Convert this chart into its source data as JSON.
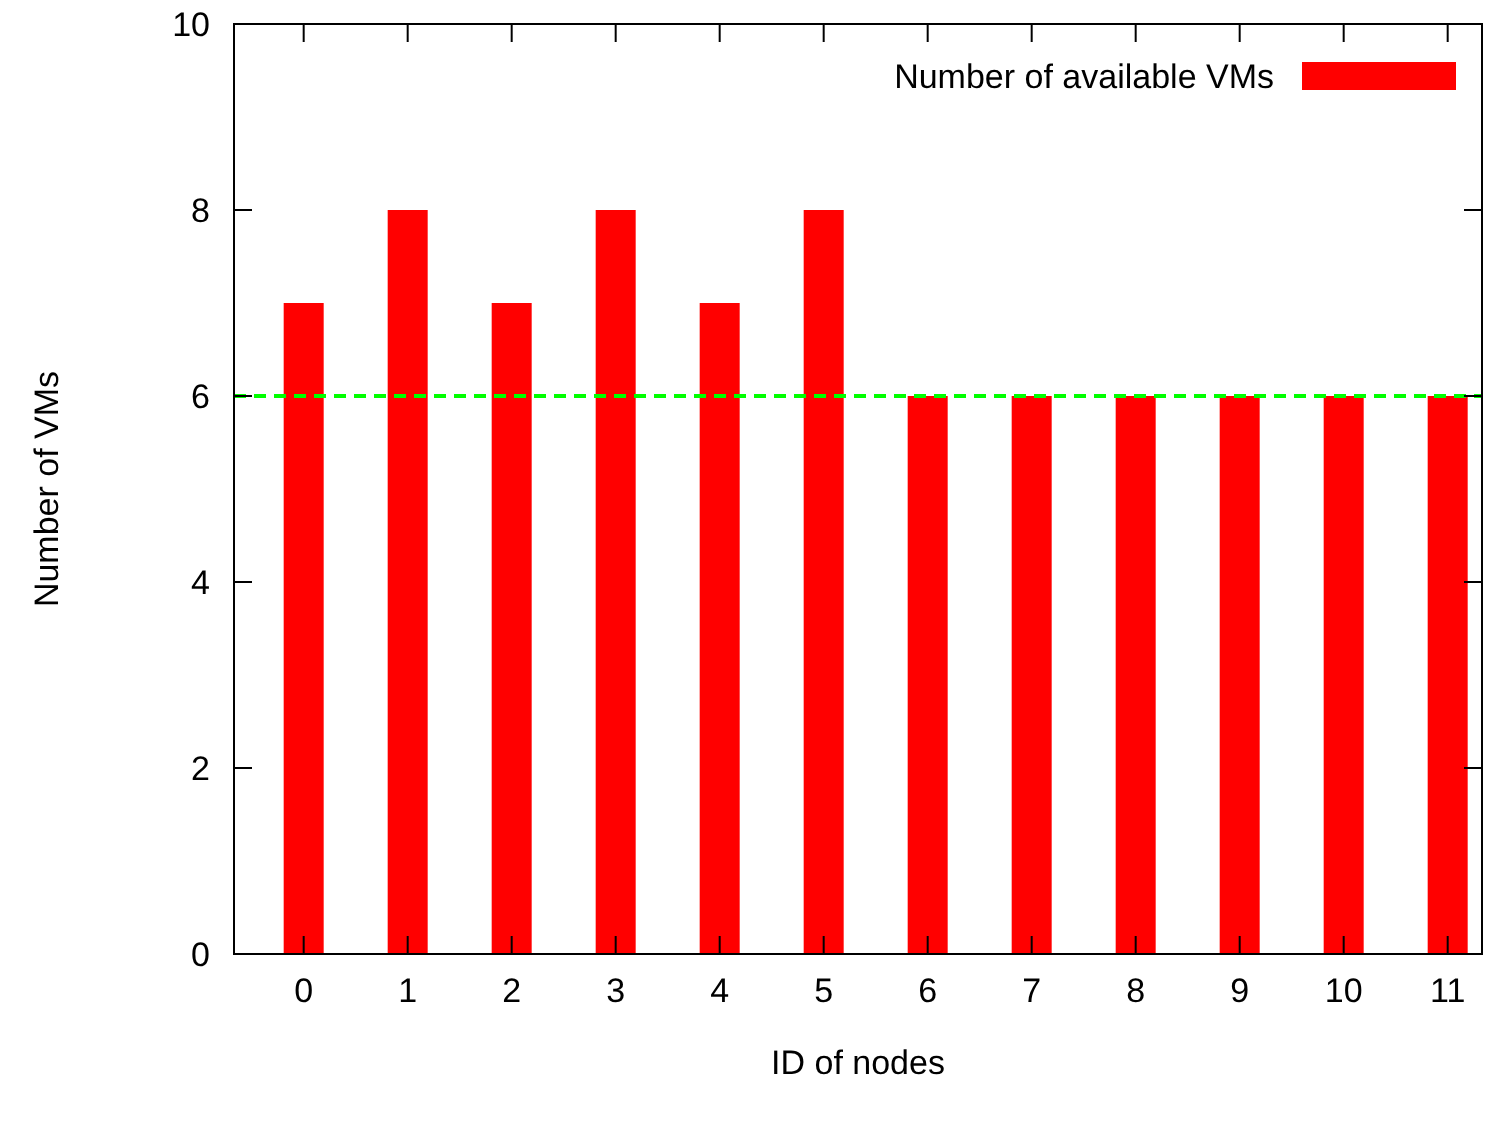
{
  "chart_data": {
    "type": "bar",
    "xlabel": "ID of nodes",
    "ylabel": "Number of VMs",
    "categories": [
      "0",
      "1",
      "2",
      "3",
      "4",
      "5",
      "6",
      "7",
      "8",
      "9",
      "10",
      "11"
    ],
    "series": [
      {
        "name": "Number of available VMs",
        "color": "#ff0000",
        "values": [
          7,
          8,
          7,
          8,
          7,
          8,
          6,
          6,
          6,
          6,
          6,
          6
        ]
      }
    ],
    "ylim": [
      0,
      10
    ],
    "yticks": [
      0,
      2,
      4,
      6,
      8,
      10
    ],
    "grid": false,
    "legend": "top right",
    "ref_lines": [
      {
        "axis": "y",
        "value": 6,
        "color": "#00ff00",
        "line_style": "dashed"
      }
    ]
  }
}
